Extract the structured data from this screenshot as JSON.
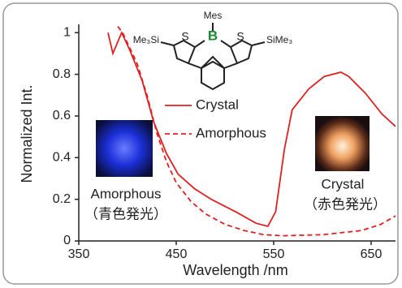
{
  "chart_data": {
    "type": "line",
    "xlabel": "Wavelength /nm",
    "ylabel": "Normalized Int.",
    "xlim": [
      350,
      675
    ],
    "ylim": [
      0,
      1.04
    ],
    "xticks": [
      350,
      450,
      550,
      650
    ],
    "yticks": [
      0,
      0.2,
      0.4,
      0.6,
      0.8,
      1
    ],
    "series": [
      {
        "name": "Crystal",
        "color": "#e02020",
        "dash": false,
        "x": [
          380,
          385,
          394,
          402,
          415,
          427,
          440,
          452,
          469,
          486,
          511,
          532,
          544,
          552,
          561,
          569,
          586,
          602,
          619,
          627,
          644,
          661,
          675
        ],
        "values": [
          1.0,
          0.9,
          1.0,
          0.92,
          0.77,
          0.57,
          0.42,
          0.32,
          0.25,
          0.2,
          0.14,
          0.085,
          0.07,
          0.14,
          0.44,
          0.63,
          0.73,
          0.79,
          0.81,
          0.79,
          0.71,
          0.61,
          0.55
        ]
      },
      {
        "name": "Amorphous",
        "color": "#e02020",
        "dash": true,
        "x": [
          390,
          395,
          400,
          410,
          420,
          430,
          440,
          450,
          465,
          480,
          500,
          520,
          540,
          560,
          600,
          640,
          660,
          675
        ],
        "values": [
          1.03,
          1.0,
          0.95,
          0.85,
          0.7,
          0.52,
          0.38,
          0.28,
          0.19,
          0.13,
          0.08,
          0.05,
          0.03,
          0.025,
          0.03,
          0.05,
          0.08,
          0.12
        ]
      }
    ],
    "annotations": [
      "Amorphous",
      "（青色発光）",
      "Crystal",
      "（赤色発光）"
    ]
  },
  "structure": {
    "labels": [
      "Mes",
      "B",
      "S",
      "S",
      "Me₃Si",
      "SiMe₃"
    ]
  }
}
